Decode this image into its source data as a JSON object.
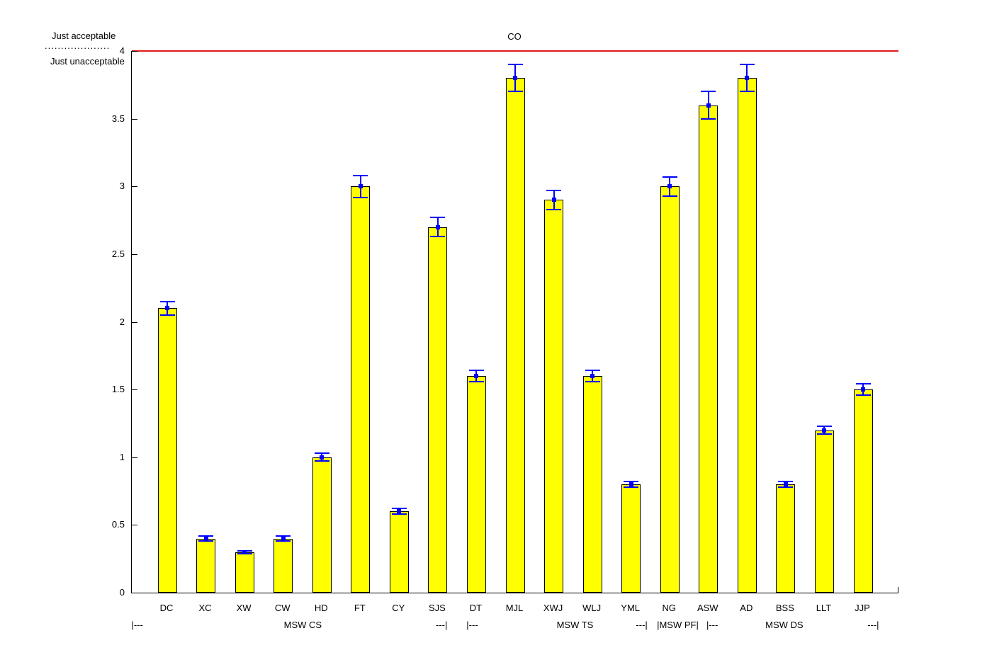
{
  "figure": {
    "acceptable_label": "Just acceptable",
    "unacceptable_label": "Just unacceptable",
    "dotted_divider": "...................."
  },
  "chart_data": {
    "type": "bar",
    "title": "CO",
    "categories": [
      "DC",
      "XC",
      "XW",
      "CW",
      "HD",
      "FT",
      "CY",
      "SJS",
      "DT",
      "MJL",
      "XWJ",
      "WLJ",
      "YML",
      "NG",
      "ASW",
      "AD",
      "BSS",
      "LLT",
      "JJP"
    ],
    "values": [
      2.1,
      0.4,
      0.3,
      0.4,
      1.0,
      3.0,
      0.6,
      2.7,
      1.6,
      3.8,
      2.9,
      1.6,
      0.8,
      3.0,
      3.6,
      3.8,
      0.8,
      1.2,
      1.5
    ],
    "errors": [
      0.05,
      0.02,
      0.01,
      0.02,
      0.03,
      0.08,
      0.02,
      0.07,
      0.04,
      0.1,
      0.07,
      0.04,
      0.02,
      0.07,
      0.1,
      0.1,
      0.02,
      0.03,
      0.04
    ],
    "ylim": [
      0,
      4
    ],
    "yticks": [
      {
        "value": 0,
        "label": "0"
      },
      {
        "value": 0.5,
        "label": "0.5"
      },
      {
        "value": 1,
        "label": "1"
      },
      {
        "value": 1.5,
        "label": "1.5"
      },
      {
        "value": 2,
        "label": "2"
      },
      {
        "value": 2.5,
        "label": "2.5"
      },
      {
        "value": 3,
        "label": "3"
      },
      {
        "value": 3.5,
        "label": "3.5"
      },
      {
        "value": 4,
        "label": "4"
      }
    ],
    "reference_line": {
      "value": 4,
      "color": "#e31a1a"
    },
    "bar_color": "#ffff00",
    "bar_edge_color": "#000000",
    "error_color": "#0000ff",
    "grid": false,
    "legend": null,
    "group_annotations": [
      {
        "text": "|---",
        "x_percent": 0.8
      },
      {
        "text": "MSW CS",
        "x_percent": 22.4
      },
      {
        "text": "---|",
        "x_percent": 40.5
      },
      {
        "text": "|---",
        "x_percent": 44.5
      },
      {
        "text": "MSW TS",
        "x_percent": 57.9
      },
      {
        "text": "---|",
        "x_percent": 66.6
      },
      {
        "text": "|MSW PF|",
        "x_percent": 71.3
      },
      {
        "text": "|---",
        "x_percent": 75.8
      },
      {
        "text": "MSW DS",
        "x_percent": 85.2
      },
      {
        "text": "---|",
        "x_percent": 96.8
      }
    ]
  }
}
